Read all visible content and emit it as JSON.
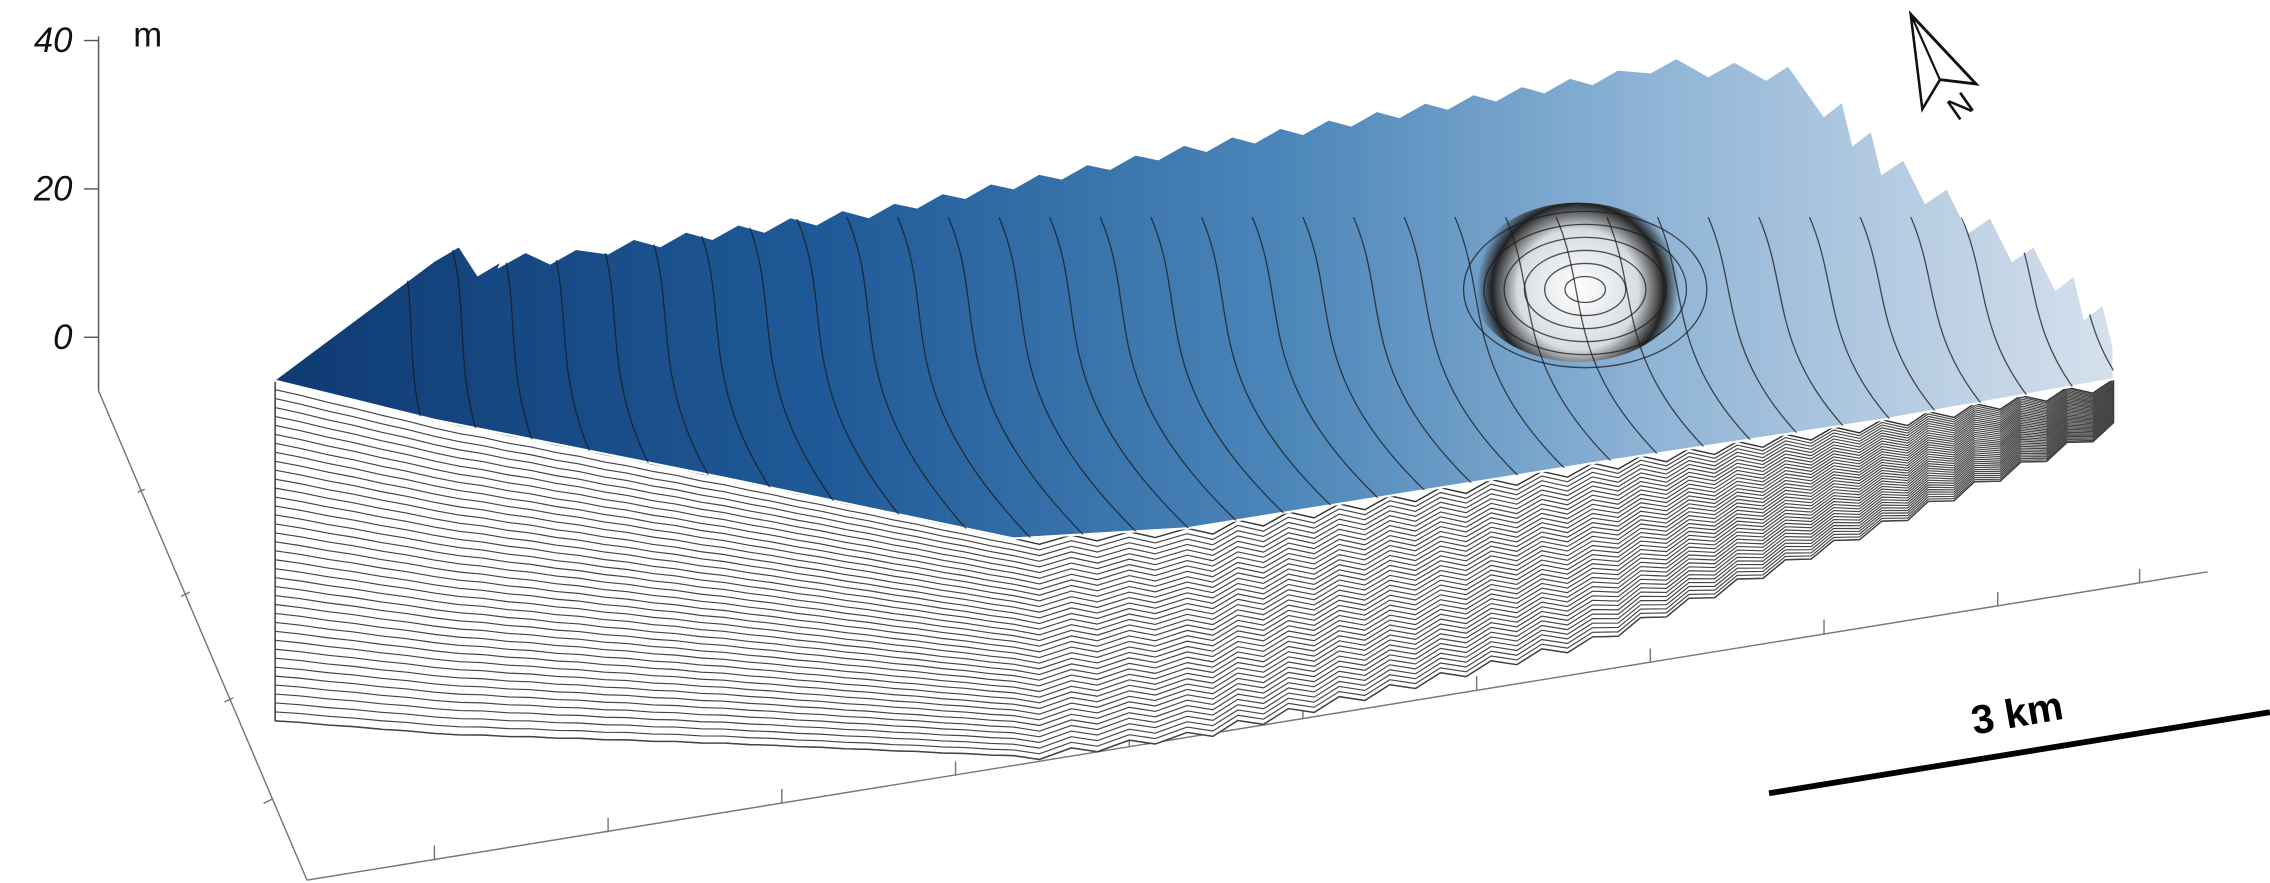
{
  "axis": {
    "unit": "m",
    "ticks": [
      40,
      20,
      0
    ]
  },
  "north_arrow": {
    "label": "N"
  },
  "scale_bar": {
    "label": "3 km"
  }
}
